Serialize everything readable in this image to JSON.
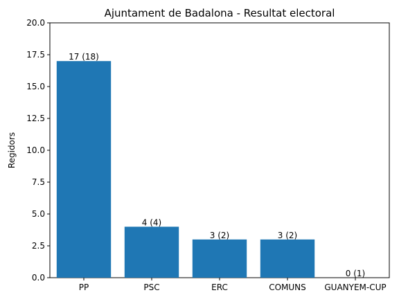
{
  "chart_data": {
    "type": "bar",
    "title": "Ajuntament de Badalona - Resultat electoral",
    "xlabel": "",
    "ylabel": "Regidors",
    "categories": [
      "PP",
      "PSC",
      "ERC",
      "COMUNS",
      "GUANYEM-CUP"
    ],
    "values": [
      17,
      4,
      3,
      3,
      0
    ],
    "data_labels": [
      "17 (18)",
      "4 (4)",
      "3 (2)",
      "3 (2)",
      "0 (1)"
    ],
    "ylim": [
      0,
      20
    ],
    "yticks": [
      "0.0",
      "2.5",
      "5.0",
      "7.5",
      "10.0",
      "12.5",
      "15.0",
      "17.5",
      "20.0"
    ],
    "ytick_values": [
      0,
      2.5,
      5,
      7.5,
      10,
      12.5,
      15,
      17.5,
      20
    ],
    "bar_color": "#1f77b4",
    "grid": false,
    "legend": "none"
  }
}
